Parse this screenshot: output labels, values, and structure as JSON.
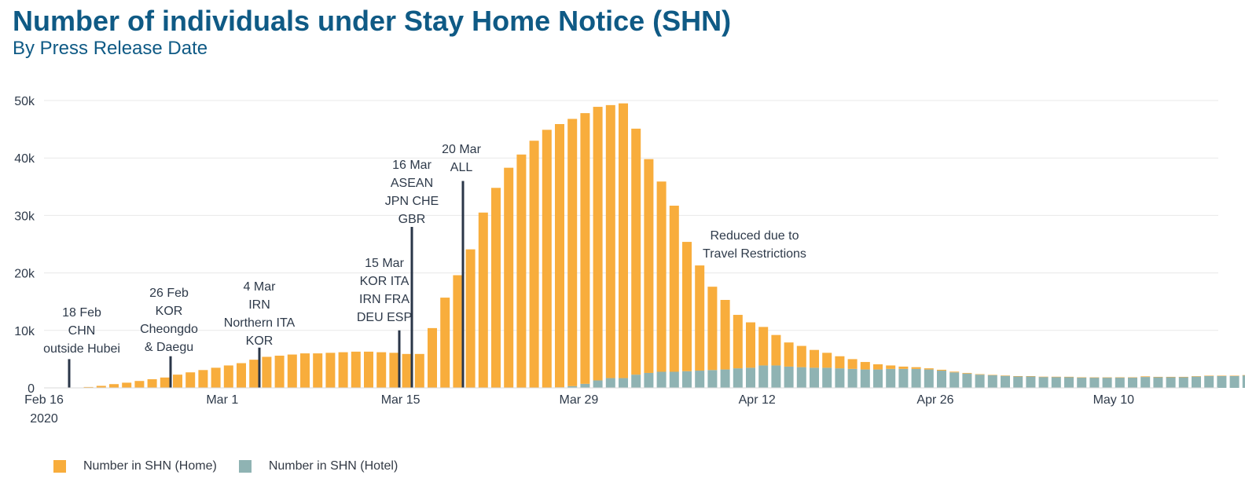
{
  "title": "Number of individuals under Stay Home Notice (SHN)",
  "subtitle": "By Press Release Date",
  "colors": {
    "home": "#f8ad3c",
    "hotel": "#8fb3b3",
    "marker": "#2a3648",
    "grid": "#e8e8e8"
  },
  "chart_data": {
    "type": "bar",
    "stacked": true,
    "start_date": "2020-02-16",
    "x_tick_labels": [
      {
        "label": "Feb 16",
        "sublabel": "2020",
        "day": 0
      },
      {
        "label": "Mar 1",
        "day": 14
      },
      {
        "label": "Mar 15",
        "day": 28
      },
      {
        "label": "Mar 29",
        "day": 42
      },
      {
        "label": "Apr 12",
        "day": 56
      },
      {
        "label": "Apr 26",
        "day": 70
      },
      {
        "label": "May 10",
        "day": 84
      }
    ],
    "y_ticks": [
      {
        "label": "0",
        "value": 0
      },
      {
        "label": "10k",
        "value": 10000
      },
      {
        "label": "20k",
        "value": 20000
      },
      {
        "label": "30k",
        "value": 30000
      },
      {
        "label": "40k",
        "value": 40000
      },
      {
        "label": "50k",
        "value": 50000
      }
    ],
    "ylim": [
      0,
      52000
    ],
    "xlim_days": [
      0,
      95
    ],
    "grid": true,
    "legend_position": "bottom-left",
    "series": [
      {
        "name": "Number in SHN (Home)",
        "key": "home",
        "values": [
          0,
          0,
          0,
          150,
          350,
          650,
          900,
          1200,
          1500,
          1800,
          2300,
          2700,
          3100,
          3500,
          3900,
          4300,
          4900,
          5400,
          5600,
          5800,
          6000,
          6000,
          6100,
          6200,
          6300,
          6300,
          6200,
          6100,
          5900,
          5900,
          10400,
          15700,
          19600,
          24100,
          30500,
          34800,
          38300,
          40600,
          43000,
          44900,
          45800,
          46500,
          47100,
          47600,
          47500,
          47800,
          42800,
          37200,
          33100,
          28900,
          22500,
          18300,
          14500,
          12100,
          9300,
          7900,
          6700,
          5300,
          4200,
          3700,
          3100,
          2600,
          2100,
          1700,
          1300,
          900,
          600,
          400,
          300,
          200,
          150,
          120,
          100,
          80,
          60,
          50,
          50,
          50,
          50,
          40,
          30,
          30,
          20,
          20,
          30,
          30,
          100,
          20,
          20,
          20,
          20,
          20,
          20,
          20,
          20
        ],
        "color": "#f8ad3c"
      },
      {
        "name": "Number in SHN (Hotel)",
        "key": "hotel",
        "values": [
          0,
          0,
          0,
          0,
          0,
          0,
          0,
          0,
          0,
          0,
          0,
          0,
          0,
          0,
          0,
          0,
          0,
          0,
          0,
          0,
          0,
          0,
          0,
          0,
          0,
          0,
          0,
          0,
          0,
          0,
          0,
          0,
          0,
          0,
          0,
          0,
          0,
          0,
          0,
          0,
          100,
          300,
          700,
          1300,
          1700,
          1700,
          2300,
          2600,
          2800,
          2800,
          2900,
          3000,
          3100,
          3200,
          3400,
          3500,
          3900,
          3900,
          3700,
          3600,
          3500,
          3500,
          3400,
          3300,
          3200,
          3200,
          3300,
          3300,
          3300,
          3200,
          3000,
          2700,
          2500,
          2300,
          2200,
          2100,
          2000,
          2000,
          1900,
          1900,
          1900,
          1800,
          1800,
          1800,
          1800,
          1800,
          1900,
          1900,
          1900,
          1900,
          2000,
          2100,
          2100,
          2100,
          2200
        ],
        "color": "#8fb3b3"
      }
    ],
    "annotations": [
      {
        "day": 2,
        "lines": [
          "18 Feb",
          "CHN",
          "outside Hubei"
        ],
        "line_top_value": 5000
      },
      {
        "day": 10,
        "lines": [
          "26 Feb",
          "KOR",
          "Cheongdo",
          "& Daegu"
        ],
        "line_top_value": 5500
      },
      {
        "day": 17,
        "lines": [
          "4 Mar",
          "IRN",
          "Northern ITA",
          "KOR"
        ],
        "line_top_value": 7000
      },
      {
        "day": 27,
        "lines": [
          "15 Mar",
          "KOR  ITA",
          "IRN  FRA",
          "DEU  ESP"
        ],
        "line_top_value": 10000
      },
      {
        "day": 28,
        "lines": [
          "16 Mar",
          "ASEAN",
          "JPN  CHE",
          "GBR"
        ],
        "line_top_value": 28000
      },
      {
        "day": 32,
        "lines": [
          "20 Mar",
          "ALL"
        ],
        "line_top_value": 36000
      },
      {
        "day": 0,
        "lines": [
          "Reduced due to",
          "Travel Restrictions"
        ],
        "text_only": true
      }
    ]
  }
}
